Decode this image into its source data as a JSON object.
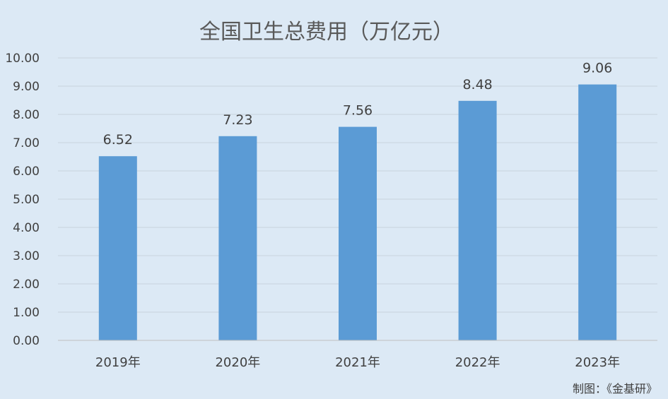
{
  "chart_data": {
    "type": "bar",
    "title": "全国卫生总费用（万亿元）",
    "categories": [
      "2019年",
      "2020年",
      "2021年",
      "2022年",
      "2023年"
    ],
    "values": [
      6.52,
      7.23,
      7.56,
      8.48,
      9.06
    ],
    "data_labels": [
      "6.52",
      "7.23",
      "7.56",
      "8.48",
      "9.06"
    ],
    "ylim": [
      0,
      10
    ],
    "yticks": [
      "0.00",
      "1.00",
      "2.00",
      "3.00",
      "4.00",
      "5.00",
      "6.00",
      "7.00",
      "8.00",
      "9.00",
      "10.00"
    ],
    "xlabel": "",
    "ylabel": "",
    "grid": true,
    "bar_color": "#5b9bd5"
  },
  "credit": "制图：《金基研》"
}
